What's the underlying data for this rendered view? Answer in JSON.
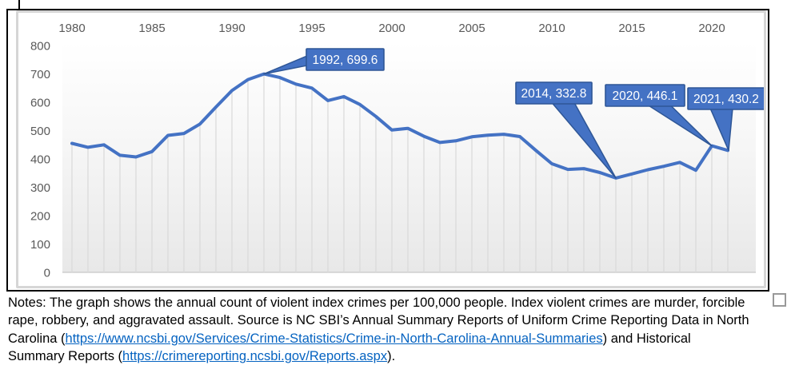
{
  "chart_data": {
    "type": "line",
    "title": "",
    "xlabel": "",
    "ylabel": "",
    "x_axis_position": "top",
    "grid": "vertical drop lines from each point to baseline",
    "legend": "none",
    "ylim": [
      0,
      800
    ],
    "yticks": [
      0,
      100,
      200,
      300,
      400,
      500,
      600,
      700,
      800
    ],
    "xticks": [
      1980,
      1985,
      1990,
      1995,
      2000,
      2005,
      2010,
      2015,
      2020
    ],
    "years": [
      1980,
      1981,
      1982,
      1983,
      1984,
      1985,
      1986,
      1987,
      1988,
      1989,
      1990,
      1991,
      1992,
      1993,
      1994,
      1995,
      1996,
      1997,
      1998,
      1999,
      2000,
      2001,
      2002,
      2003,
      2004,
      2005,
      2006,
      2007,
      2008,
      2009,
      2010,
      2011,
      2012,
      2013,
      2014,
      2015,
      2016,
      2017,
      2018,
      2019,
      2020,
      2021
    ],
    "values": [
      455,
      441,
      450,
      413,
      407,
      426,
      483,
      490,
      523,
      583,
      641,
      680,
      699.6,
      687,
      664,
      650,
      606,
      620,
      592,
      550,
      502,
      508,
      480,
      458,
      464,
      478,
      484,
      487,
      479,
      430,
      383,
      363,
      366,
      352,
      332.8,
      347,
      362,
      374,
      388,
      360,
      446.1,
      430.2
    ],
    "annotations": [
      {
        "label": "1992, 699.6",
        "year": 1992,
        "value": 699.6
      },
      {
        "label": "2014, 332.8",
        "year": 2014,
        "value": 332.8
      },
      {
        "label": "2020, 446.1",
        "year": 2020,
        "value": 446.1
      },
      {
        "label": "2021, 430.2",
        "year": 2021,
        "value": 430.2
      }
    ]
  },
  "colors": {
    "line": "#4472C4",
    "callout_fill": "#4472C4",
    "callout_border": "#2E5696",
    "callout_text": "#ffffff",
    "tick_label": "#595959",
    "drop_line": "#d9d9d9",
    "baseline": "#c6c6c6",
    "link": "#0563C1",
    "frame_border": "#000000"
  },
  "notes": {
    "lines": [
      [
        {
          "t": "Notes: The graph shows the annual count of violent index crimes per 100,000 people. Index violent crimes are murder, forcible",
          "link": false
        }
      ],
      [
        {
          "t": "rape, robbery, and aggravated assault. Source is NC SBI’s Annual Summary Reports of Uniform Crime Reporting Data in North",
          "link": false
        }
      ],
      [
        {
          "t": "Carolina (",
          "link": false
        },
        {
          "t": "https://www.ncsbi.gov/Services/Crime-Statistics/Crime-in-North-Carolina-Annual-Summaries",
          "link": true
        },
        {
          "t": ") and Historical",
          "link": false
        }
      ],
      [
        {
          "t": "Summary Reports (",
          "link": false
        },
        {
          "t": "https://crimereporting.ncsbi.gov/Reports.aspx",
          "link": true
        },
        {
          "t": ").",
          "link": false
        }
      ]
    ]
  }
}
